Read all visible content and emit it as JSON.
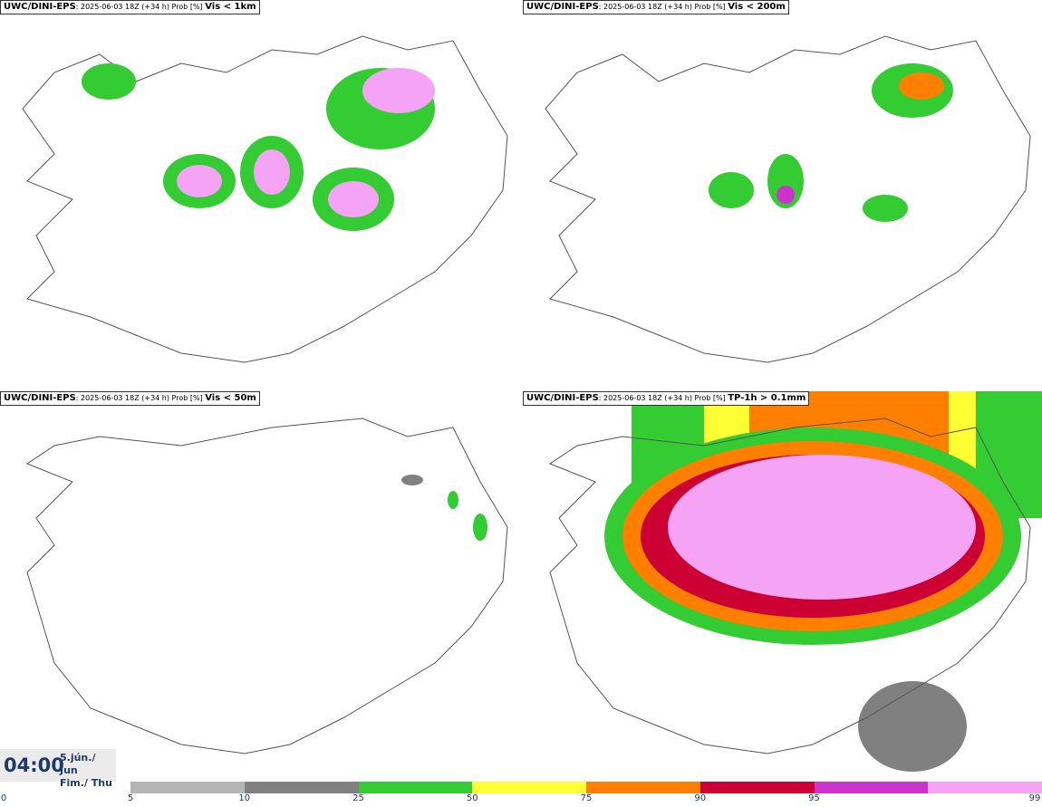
{
  "panels": [
    {
      "model": "UWC/DINI-EPS",
      "meta": ": 2025-06-03 18Z (+34 h) Prob [%] ",
      "variable": "Vis < 1km"
    },
    {
      "model": "UWC/DINI-EPS",
      "meta": ": 2025-06-03 18Z (+34 h) Prob [%] ",
      "variable": "Vis < 200m"
    },
    {
      "model": "UWC/DINI-EPS",
      "meta": ": 2025-06-03 18Z (+34 h) Prob [%] ",
      "variable": "Vis < 50m"
    },
    {
      "model": "UWC/DINI-EPS",
      "meta": ": 2025-06-03 18Z (+34 h) Prob [%] ",
      "variable": "TP-1h > 0.1mm"
    }
  ],
  "valid_time": {
    "time": "04:00",
    "date_line1": "5.jún./ Jun",
    "date_line2": "Fim./ Thu"
  },
  "colorbar": {
    "ticks": [
      "0",
      "5",
      "10",
      "25",
      "50",
      "75",
      "90",
      "95",
      "99"
    ],
    "colors": [
      "#b4b4b4",
      "#808080",
      "#33cc33",
      "#ffff33",
      "#ff7f00",
      "#cc0033",
      "#cc33cc",
      "#f5a3f5"
    ]
  }
}
